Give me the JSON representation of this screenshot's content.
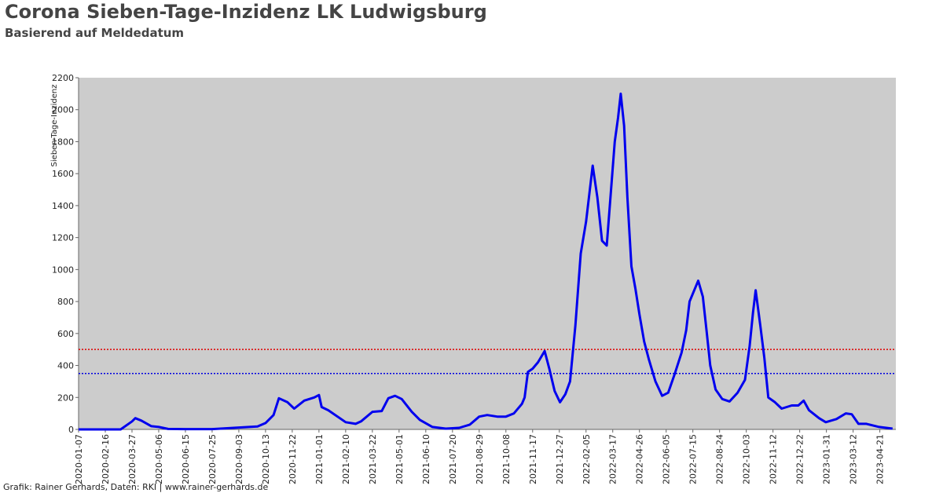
{
  "chart_data": {
    "type": "line",
    "title": "Corona Sieben-Tage-Inzidenz LK Ludwigsburg",
    "subtitle": "Basierend auf Meldedatum",
    "y_label": "Sieben-Tage-Inzidenz",
    "footer": "Grafik: Rainer Gerhards, Daten: RKI | www.rainer-gerhards.de",
    "x": [
      "2020-01-07",
      "2020-03-10",
      "2020-03-27",
      "2020-04-01",
      "2020-04-10",
      "2020-04-25",
      "2020-05-06",
      "2020-05-20",
      "2020-06-15",
      "2020-07-25",
      "2020-09-03",
      "2020-10-01",
      "2020-10-13",
      "2020-10-25",
      "2020-11-02",
      "2020-11-15",
      "2020-11-25",
      "2020-12-10",
      "2020-12-25",
      "2021-01-01",
      "2021-01-05",
      "2021-01-15",
      "2021-02-10",
      "2021-02-25",
      "2021-03-05",
      "2021-03-22",
      "2021-04-05",
      "2021-04-15",
      "2021-04-25",
      "2021-05-05",
      "2021-05-20",
      "2021-06-01",
      "2021-06-20",
      "2021-07-10",
      "2021-07-30",
      "2021-08-15",
      "2021-08-29",
      "2021-09-10",
      "2021-09-25",
      "2021-10-08",
      "2021-10-20",
      "2021-11-01",
      "2021-11-05",
      "2021-11-10",
      "2021-11-17",
      "2021-11-25",
      "2021-12-05",
      "2021-12-12",
      "2021-12-20",
      "2021-12-28",
      "2022-01-05",
      "2022-01-12",
      "2022-01-20",
      "2022-01-28",
      "2022-02-05",
      "2022-02-15",
      "2022-02-22",
      "2022-03-01",
      "2022-03-08",
      "2022-03-20",
      "2022-03-25",
      "2022-03-29",
      "2022-04-03",
      "2022-04-08",
      "2022-04-14",
      "2022-04-20",
      "2022-04-26",
      "2022-05-03",
      "2022-05-10",
      "2022-05-20",
      "2022-05-30",
      "2022-06-08",
      "2022-06-18",
      "2022-06-28",
      "2022-07-05",
      "2022-07-10",
      "2022-07-23",
      "2022-07-30",
      "2022-08-05",
      "2022-08-10",
      "2022-08-18",
      "2022-08-28",
      "2022-09-08",
      "2022-09-20",
      "2022-10-01",
      "2022-10-08",
      "2022-10-13",
      "2022-10-17",
      "2022-10-24",
      "2022-10-30",
      "2022-11-05",
      "2022-11-15",
      "2022-11-25",
      "2022-12-10",
      "2022-12-20",
      "2022-12-28",
      "2023-01-05",
      "2023-01-20",
      "2023-01-30",
      "2023-02-15",
      "2023-03-01",
      "2023-03-10",
      "2023-03-20",
      "2023-04-01",
      "2023-04-20",
      "2023-05-10"
    ],
    "series": [
      {
        "name": "Sieben-Tage-Inzidenz",
        "color": "#0000ee",
        "values": [
          0,
          0,
          50,
          70,
          55,
          20,
          15,
          3,
          2,
          2,
          12,
          18,
          40,
          90,
          195,
          170,
          130,
          180,
          200,
          215,
          140,
          120,
          45,
          35,
          50,
          110,
          115,
          195,
          210,
          190,
          110,
          60,
          15,
          5,
          10,
          30,
          80,
          90,
          80,
          80,
          100,
          160,
          200,
          360,
          380,
          420,
          490,
          380,
          240,
          170,
          220,
          300,
          650,
          1100,
          1300,
          1650,
          1450,
          1180,
          1150,
          1800,
          1950,
          2100,
          1900,
          1450,
          1020,
          880,
          720,
          550,
          440,
          300,
          210,
          230,
          350,
          480,
          620,
          800,
          930,
          830,
          600,
          400,
          250,
          190,
          175,
          230,
          310,
          520,
          730,
          870,
          650,
          450,
          200,
          170,
          130,
          150,
          150,
          180,
          120,
          70,
          45,
          65,
          100,
          95,
          35,
          35,
          15,
          5
        ]
      }
    ],
    "reference_lines": [
      {
        "value": 500,
        "color": "#e00000"
      },
      {
        "value": 350,
        "color": "#0000e0"
      }
    ],
    "xlim": [
      "2020-01-07",
      "2023-05-15"
    ],
    "xticks": [
      "2020-01-07",
      "2020-02-16",
      "2020-03-27",
      "2020-05-06",
      "2020-06-15",
      "2020-07-25",
      "2020-09-03",
      "2020-10-13",
      "2020-11-22",
      "2021-01-01",
      "2021-02-10",
      "2021-03-22",
      "2021-05-01",
      "2021-06-10",
      "2021-07-20",
      "2021-08-29",
      "2021-10-08",
      "2021-11-17",
      "2021-12-27",
      "2022-02-05",
      "2022-03-17",
      "2022-04-26",
      "2022-06-05",
      "2022-07-15",
      "2022-08-24",
      "2022-10-03",
      "2022-11-12",
      "2022-12-22",
      "2023-01-31",
      "2023-03-12",
      "2023-04-21"
    ],
    "ylim": [
      0,
      2200
    ],
    "yticks": [
      0,
      200,
      400,
      600,
      800,
      1000,
      1200,
      1400,
      1600,
      1800,
      2000,
      2200
    ]
  }
}
